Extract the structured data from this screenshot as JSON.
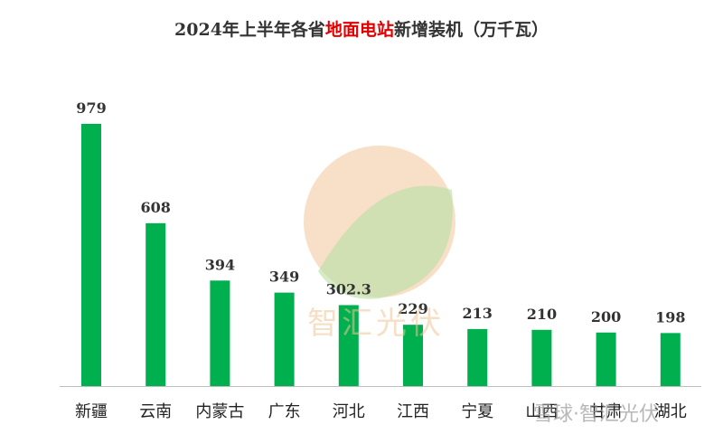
{
  "chart_data": {
    "type": "bar",
    "title_prefix": "2024年上半年各省",
    "title_highlight": "地面电站",
    "title_suffix": "新增装机（万千瓦）",
    "categories": [
      "新疆",
      "云南",
      "内蒙古",
      "广东",
      "河北",
      "江西",
      "宁夏",
      "山西",
      "甘肃",
      "湖北"
    ],
    "values": [
      979,
      608,
      394,
      349,
      302.3,
      229,
      213,
      210,
      200,
      198
    ],
    "value_labels": [
      "979",
      "608",
      "394",
      "349",
      "302.3",
      "229",
      "213",
      "210",
      "200",
      "198"
    ],
    "ylim": [
      0,
      1000
    ],
    "grid": false,
    "legend": "none",
    "bar_color": "#00b04f",
    "title_highlight_color": "#e00000"
  },
  "watermark": {
    "text": "智汇光伏",
    "corner_text": "雪球·智汇光伏",
    "sun_color": "#f3c79a",
    "leaf_color": "#b7e0a4"
  }
}
